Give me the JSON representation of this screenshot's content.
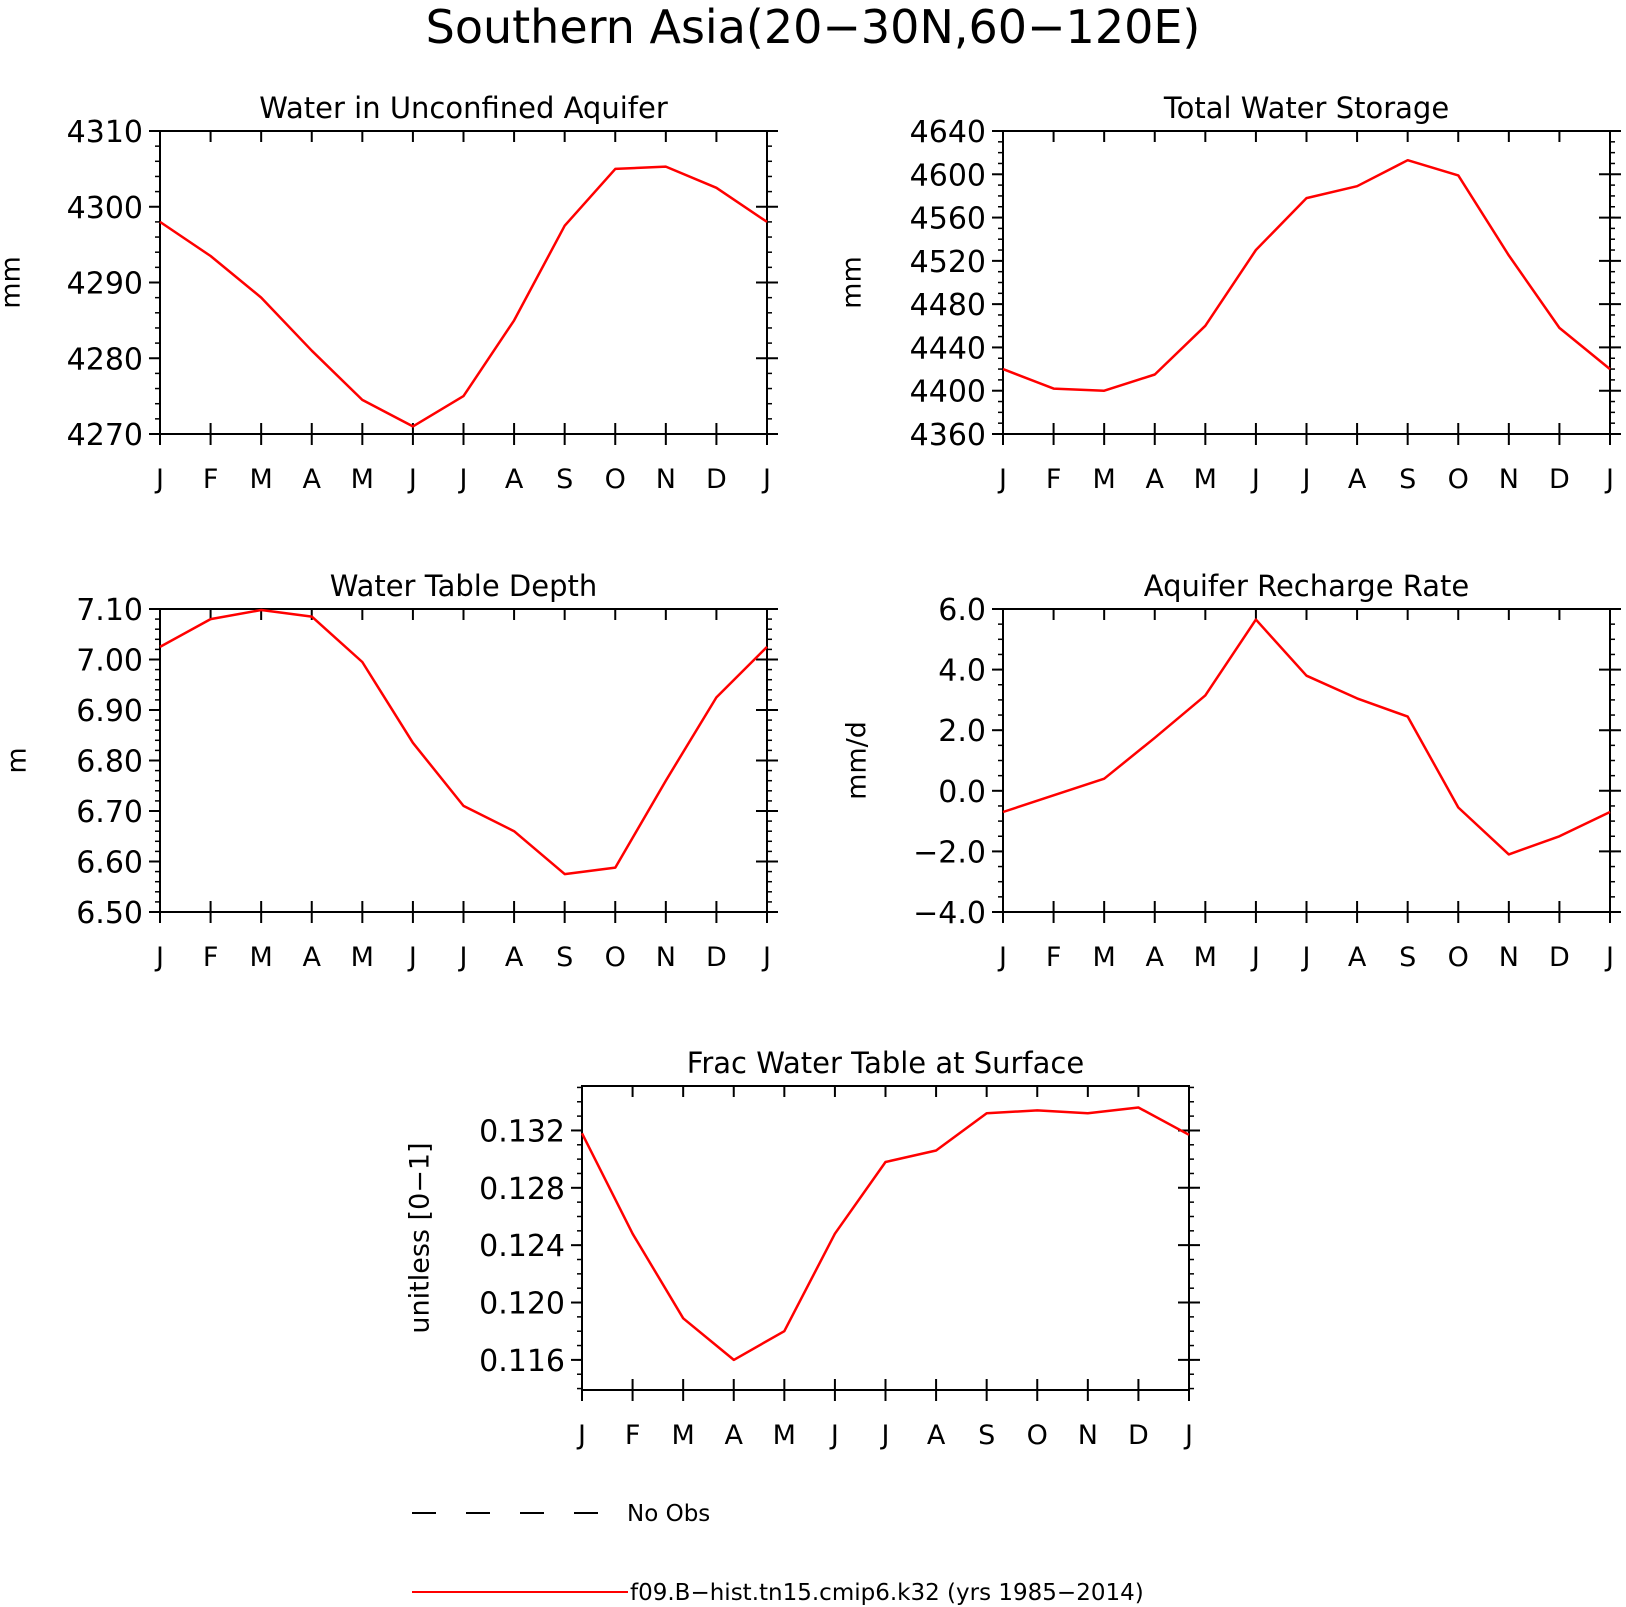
{
  "figure_title": "Southern Asia(20−30N,60−120E)",
  "legend": [
    {
      "label": "No Obs",
      "style": "dashed",
      "color": "#000000"
    },
    {
      "label": "f09.B−hist.tn15.cmip6.k32 (yrs 1985−2014)",
      "style": "solid",
      "color": "#ff0000"
    }
  ],
  "colors": {
    "series": "#ff0000",
    "axes": "#000000"
  },
  "chart_data": [
    {
      "type": "line",
      "title": "Water in Unconfined Aquifer",
      "ylabel": "mm",
      "x": [
        "J",
        "F",
        "M",
        "A",
        "M",
        "J",
        "J",
        "A",
        "S",
        "O",
        "N",
        "D",
        "J"
      ],
      "ylim": [
        4270,
        4310
      ],
      "yticks": [
        4270,
        4280,
        4290,
        4300,
        4310
      ],
      "ytick_labels": [
        "4270",
        "4280",
        "4290",
        "4300",
        "4310"
      ],
      "minor_step": 2,
      "series": [
        {
          "values": [
            4298,
            4293.5,
            4288,
            4281,
            4274.5,
            4271,
            4275,
            4285,
            4297.5,
            4305,
            4305.3,
            4302.5,
            4298
          ]
        }
      ]
    },
    {
      "type": "line",
      "title": "Total Water Storage",
      "ylabel": "mm",
      "x": [
        "J",
        "F",
        "M",
        "A",
        "M",
        "J",
        "J",
        "A",
        "S",
        "O",
        "N",
        "D",
        "J"
      ],
      "ylim": [
        4360,
        4640
      ],
      "yticks": [
        4360,
        4400,
        4440,
        4480,
        4520,
        4560,
        4600,
        4640
      ],
      "ytick_labels": [
        "4360",
        "4400",
        "4440",
        "4480",
        "4520",
        "4560",
        "4600",
        "4640"
      ],
      "minor_step": 10,
      "series": [
        {
          "values": [
            4420,
            4402,
            4400,
            4415,
            4460,
            4530,
            4578,
            4589,
            4613,
            4599,
            4525,
            4458,
            4420
          ]
        }
      ]
    },
    {
      "type": "line",
      "title": "Water Table Depth",
      "ylabel": "m",
      "x": [
        "J",
        "F",
        "M",
        "A",
        "M",
        "J",
        "J",
        "A",
        "S",
        "O",
        "N",
        "D",
        "J"
      ],
      "ylim": [
        6.5,
        7.1
      ],
      "yticks": [
        6.5,
        6.6,
        6.7,
        6.8,
        6.9,
        7.0,
        7.1
      ],
      "ytick_labels": [
        "6.50",
        "6.60",
        "6.70",
        "6.80",
        "6.90",
        "7.00",
        "7.10"
      ],
      "minor_step": 0.02,
      "series": [
        {
          "values": [
            7.025,
            7.08,
            7.098,
            7.085,
            6.995,
            6.835,
            6.71,
            6.66,
            6.575,
            6.588,
            6.76,
            6.925,
            7.025
          ]
        }
      ]
    },
    {
      "type": "line",
      "title": "Aquifer Recharge Rate",
      "ylabel": "mm/d",
      "x": [
        "J",
        "F",
        "M",
        "A",
        "M",
        "J",
        "J",
        "A",
        "S",
        "O",
        "N",
        "D",
        "J"
      ],
      "ylim": [
        -4.0,
        6.0
      ],
      "yticks": [
        -4.0,
        -2.0,
        0.0,
        2.0,
        4.0,
        6.0
      ],
      "ytick_labels": [
        "−4.0",
        "−2.0",
        "0.0",
        "2.0",
        "4.0",
        "6.0"
      ],
      "minor_step": 0.5,
      "series": [
        {
          "values": [
            -0.7,
            -0.15,
            0.4,
            1.75,
            3.15,
            5.65,
            3.8,
            3.05,
            2.45,
            -0.55,
            -2.1,
            -1.5,
            -0.7
          ]
        }
      ]
    },
    {
      "type": "line",
      "title": "Frac Water Table at Surface",
      "ylabel": "unitless [0−1]",
      "x": [
        "J",
        "F",
        "M",
        "A",
        "M",
        "J",
        "J",
        "A",
        "S",
        "O",
        "N",
        "D",
        "J"
      ],
      "ylim": [
        0.1139,
        0.1351
      ],
      "yticks": [
        0.116,
        0.12,
        0.124,
        0.128,
        0.132
      ],
      "ytick_labels": [
        "0.116",
        "0.120",
        "0.124",
        "0.128",
        "0.132"
      ],
      "minor_step": 0.001,
      "series": [
        {
          "values": [
            0.1318,
            0.1248,
            0.1189,
            0.116,
            0.118,
            0.1248,
            0.1298,
            0.1306,
            0.1332,
            0.1334,
            0.1332,
            0.1336,
            0.1317
          ]
        }
      ]
    }
  ]
}
